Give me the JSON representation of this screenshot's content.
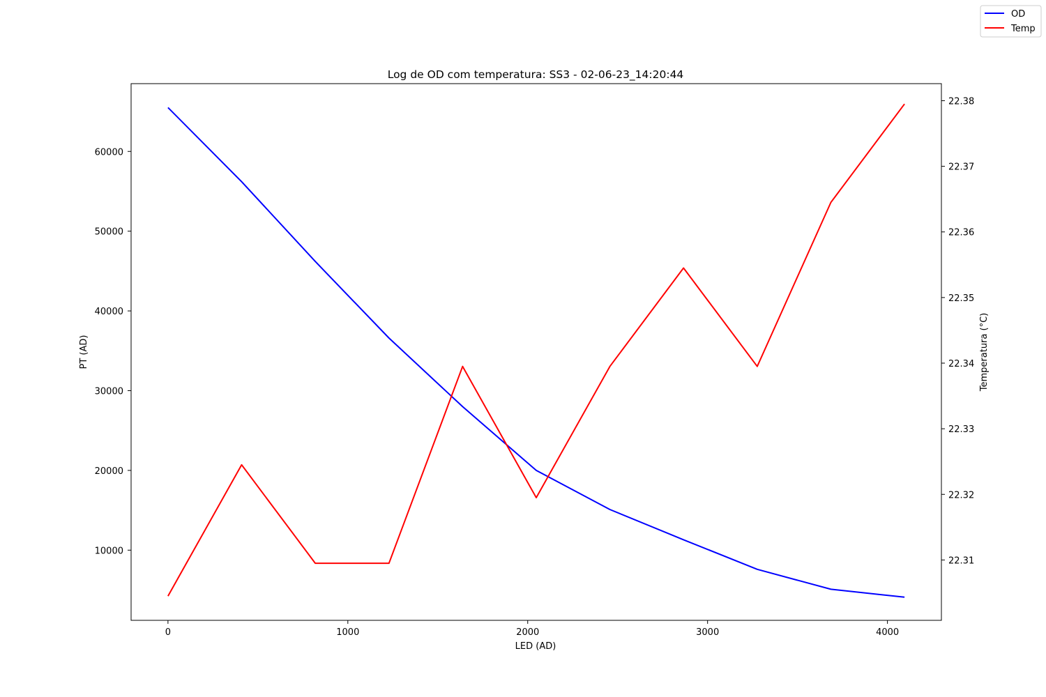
{
  "chart_data": {
    "type": "line",
    "title": "Log de OD com temperatura: SS3 - 02-06-23_14:20:44",
    "xlabel": "LED (AD)",
    "ylabel": "PT (AD)",
    "y2label": "Temperatura (°C)",
    "xlim": [
      -205,
      4300
    ],
    "ylim": [
      1200,
      68500
    ],
    "y2lim": [
      22.3008,
      22.3826
    ],
    "xticks": [
      0,
      1000,
      2000,
      3000,
      4000
    ],
    "yticks": [
      10000,
      20000,
      30000,
      40000,
      50000,
      60000
    ],
    "y2ticks": [
      22.31,
      22.32,
      22.33,
      22.34,
      22.35,
      22.36,
      22.37,
      22.38
    ],
    "y2tick_labels": [
      "22.31",
      "22.32",
      "22.33",
      "22.34",
      "22.35",
      "22.36",
      "22.37",
      "22.38"
    ],
    "grid": false,
    "legend_position": "top-right",
    "x": [
      0,
      409.5,
      819,
      1228.5,
      1638,
      2047.5,
      2457,
      2866.5,
      3276,
      3685.5,
      4095
    ],
    "series": [
      {
        "name": "OD",
        "axis": "left",
        "color": "#0000ff",
        "values": [
          65500,
          56200,
          46200,
          36600,
          28000,
          20000,
          15100,
          11300,
          7600,
          5100,
          4100
        ]
      },
      {
        "name": "Temp",
        "axis": "right",
        "color": "#ff0000",
        "values": [
          22.3045,
          22.3245,
          22.3095,
          22.3095,
          22.3395,
          22.3195,
          22.3395,
          22.3545,
          22.3395,
          22.3645,
          22.3795
        ]
      }
    ]
  }
}
